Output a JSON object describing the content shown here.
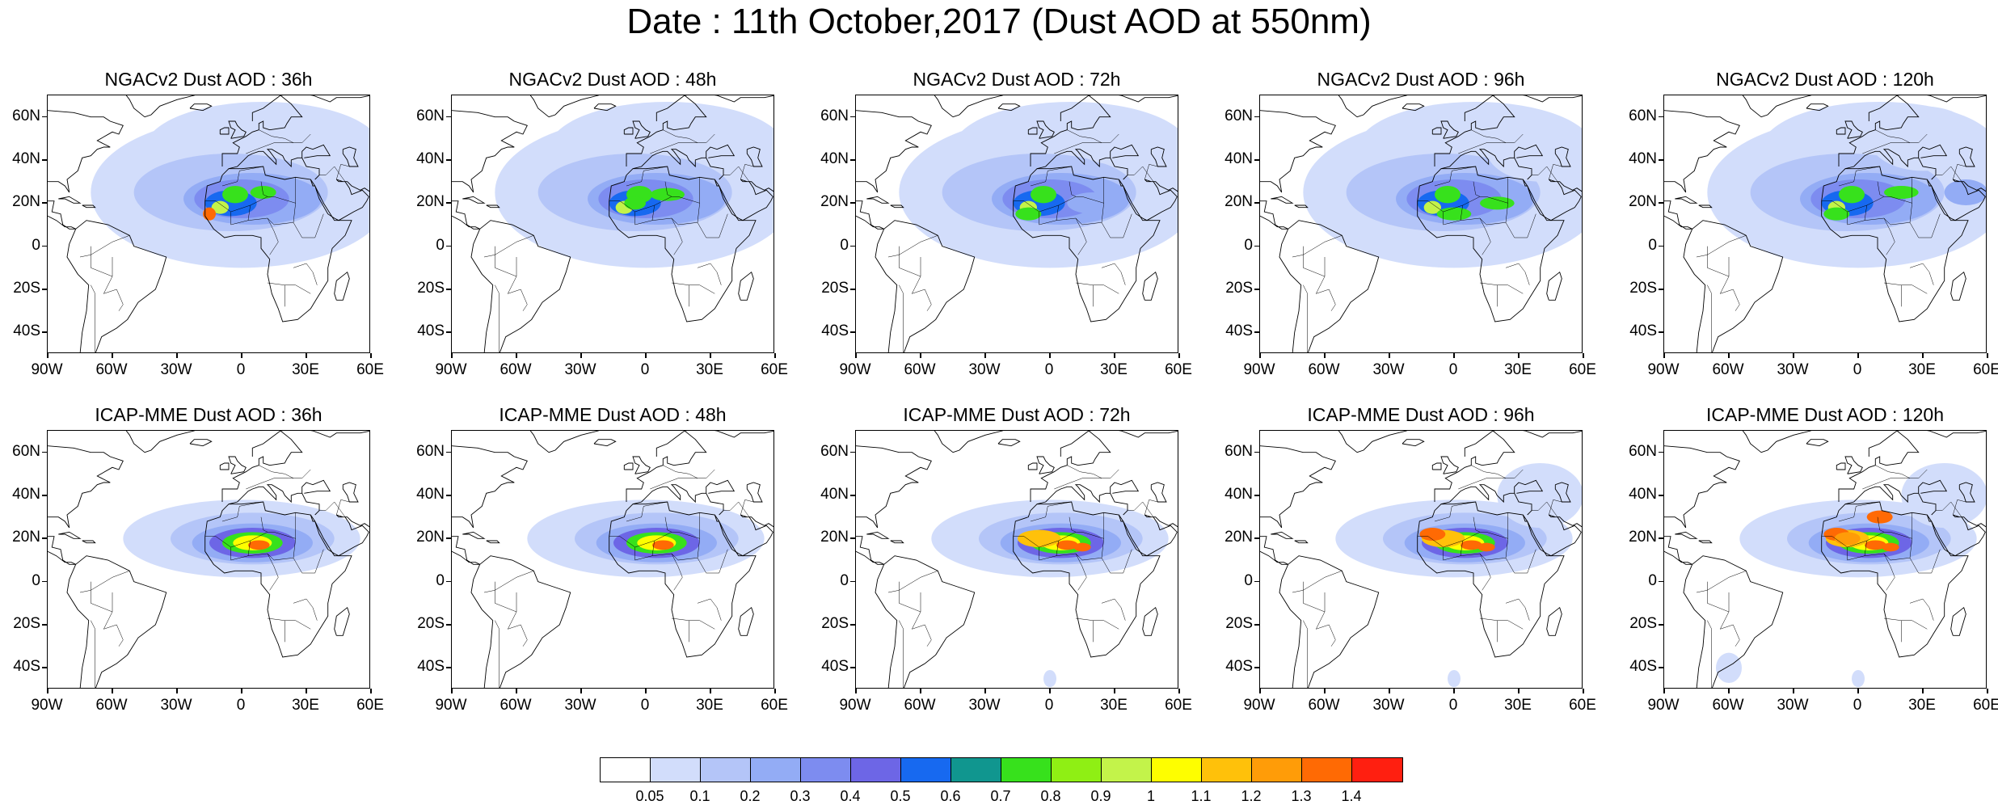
{
  "figure": {
    "title": "Date : 11th October,2017 (Dust AOD at 550nm)"
  },
  "axes": {
    "lat_labels": [
      "60N",
      "40N",
      "20N",
      "0",
      "20S",
      "40S"
    ],
    "lat_values": [
      60,
      40,
      20,
      0,
      -20,
      -40
    ],
    "lon_labels": [
      "90W",
      "60W",
      "30W",
      "0",
      "30E",
      "60E"
    ],
    "lon_values": [
      -90,
      -60,
      -30,
      0,
      30,
      60
    ],
    "lat_range": [
      -50,
      70
    ],
    "lon_range": [
      -90,
      60
    ]
  },
  "panels": [
    {
      "title": "NGACv2 Dust AOD : 36h",
      "model": "NGACv2",
      "lead": "36h",
      "row": 0,
      "col": 0
    },
    {
      "title": "NGACv2 Dust AOD : 48h",
      "model": "NGACv2",
      "lead": "48h",
      "row": 0,
      "col": 1
    },
    {
      "title": "NGACv2 Dust AOD : 72h",
      "model": "NGACv2",
      "lead": "72h",
      "row": 0,
      "col": 2
    },
    {
      "title": "NGACv2 Dust AOD : 96h",
      "model": "NGACv2",
      "lead": "96h",
      "row": 0,
      "col": 3
    },
    {
      "title": "NGACv2 Dust AOD : 120h",
      "model": "NGACv2",
      "lead": "120h",
      "row": 0,
      "col": 4
    },
    {
      "title": "ICAP-MME Dust AOD : 36h",
      "model": "ICAP-MME",
      "lead": "36h",
      "row": 1,
      "col": 0
    },
    {
      "title": "ICAP-MME Dust AOD : 48h",
      "model": "ICAP-MME",
      "lead": "48h",
      "row": 1,
      "col": 1
    },
    {
      "title": "ICAP-MME Dust AOD : 72h",
      "model": "ICAP-MME",
      "lead": "72h",
      "row": 1,
      "col": 2
    },
    {
      "title": "ICAP-MME Dust AOD : 96h",
      "model": "ICAP-MME",
      "lead": "96h",
      "row": 1,
      "col": 3
    },
    {
      "title": "ICAP-MME Dust AOD : 120h",
      "model": "ICAP-MME",
      "lead": "120h",
      "row": 1,
      "col": 4
    }
  ],
  "colorbar": {
    "labels": [
      "0.05",
      "0.1",
      "0.2",
      "0.3",
      "0.4",
      "0.5",
      "0.6",
      "0.7",
      "0.8",
      "0.9",
      "1",
      "1.1",
      "1.2",
      "1.3",
      "1.4"
    ],
    "colors": [
      "#ffffff",
      "#d2ddfb",
      "#b4c5f8",
      "#93acf5",
      "#7d8cf0",
      "#6d66e6",
      "#1769f0",
      "#10968f",
      "#37e11c",
      "#8fef14",
      "#c3f34a",
      "#fefe00",
      "#ffc10a",
      "#ff9c08",
      "#ff6a04",
      "#ff1f10"
    ]
  },
  "colors": {
    "coast": "#000000",
    "land_fill": "#ffffff"
  }
}
